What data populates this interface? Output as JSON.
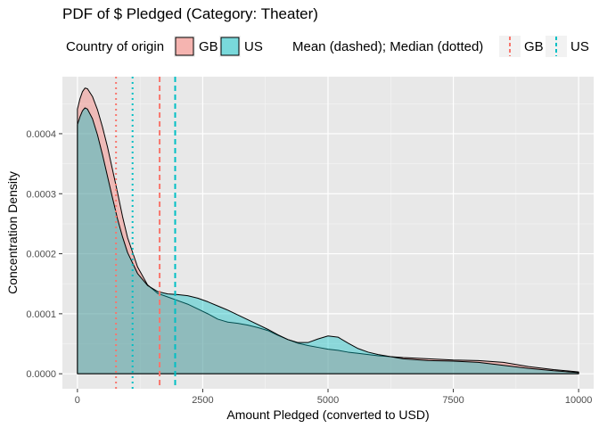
{
  "chart_data": {
    "type": "area",
    "title": "PDF of $ Pledged (Category: Theater)",
    "xlabel": "Amount Pledged (converted to USD)",
    "ylabel": "Concentration Density",
    "xlim": [
      -300,
      10300
    ],
    "ylim": [
      -2.5e-05,
      0.000495
    ],
    "x_ticks": [
      0,
      2500,
      5000,
      7500,
      10000
    ],
    "x_tick_labels": [
      "0",
      "2500",
      "5000",
      "7500",
      "10000"
    ],
    "y_ticks": [
      0,
      0.0001,
      0.0002,
      0.0003,
      0.0004
    ],
    "y_tick_labels": [
      "0.0000",
      "0.0001",
      "0.0002",
      "0.0003",
      "0.0004"
    ],
    "grid": true,
    "legend": {
      "placement": "top",
      "fill_title": "Country of origin",
      "line_title": "Mean (dashed); Median (dotted)",
      "labels": [
        "GB",
        "US"
      ]
    },
    "series": [
      {
        "name": "GB",
        "color": "#F8766D",
        "x": [
          0,
          50,
          100,
          150,
          200,
          300,
          400,
          500,
          600,
          700,
          800,
          900,
          1000,
          1200,
          1400,
          1600,
          1800,
          2000,
          2200,
          2400,
          2600,
          2800,
          3000,
          3200,
          3400,
          3600,
          3800,
          4000,
          4200,
          4400,
          4600,
          4800,
          5000,
          5200,
          5400,
          5600,
          5800,
          6000,
          6500,
          7000,
          7500,
          8000,
          8500,
          9000,
          9500,
          10000
        ],
        "y": [
          0.000441,
          0.000458,
          0.00047,
          0.000476,
          0.000475,
          0.000462,
          0.00044,
          0.000411,
          0.000378,
          0.00034,
          0.000302,
          0.000262,
          0.000227,
          0.000178,
          0.000148,
          0.000134,
          0.000128,
          0.000122,
          0.000116,
          0.000108,
          0.0001,
          9.1e-05,
          8.6e-05,
          8.4e-05,
          8.1e-05,
          7.7e-05,
          7.2e-05,
          6.4e-05,
          5.7e-05,
          5.1e-05,
          4.7e-05,
          4.4e-05,
          4.1e-05,
          3.9e-05,
          3.6e-05,
          3.4e-05,
          3.2e-05,
          3e-05,
          2.7e-05,
          2.5e-05,
          2.3e-05,
          2.2e-05,
          1.9e-05,
          1.2e-05,
          7e-06,
          3e-06
        ]
      },
      {
        "name": "US",
        "color": "#00BFC4",
        "x": [
          0,
          50,
          100,
          150,
          200,
          300,
          400,
          500,
          600,
          700,
          800,
          900,
          1000,
          1200,
          1400,
          1600,
          1800,
          2000,
          2200,
          2400,
          2600,
          2800,
          3000,
          3200,
          3400,
          3600,
          3800,
          4000,
          4200,
          4400,
          4600,
          4800,
          5000,
          5200,
          5400,
          5600,
          5800,
          6000,
          6500,
          7000,
          7500,
          8000,
          8500,
          9000,
          9500,
          10000
        ],
        "y": [
          0.000415,
          0.000428,
          0.000438,
          0.000443,
          0.000441,
          0.000425,
          0.000398,
          0.000365,
          0.000329,
          0.000293,
          0.000258,
          0.000228,
          0.000202,
          0.000167,
          0.000147,
          0.000137,
          0.000133,
          0.000132,
          0.00013,
          0.000126,
          0.00012,
          0.000113,
          0.000106,
          9.8e-05,
          9e-05,
          8.2e-05,
          7.4e-05,
          6.5e-05,
          5.7e-05,
          5.2e-05,
          5.2e-05,
          5.8e-05,
          6.3e-05,
          6.1e-05,
          5.1e-05,
          4.2e-05,
          3.6e-05,
          3.2e-05,
          2.5e-05,
          2.2e-05,
          2.1e-05,
          1.9e-05,
          1.4e-05,
          9e-06,
          5e-06,
          2e-06
        ]
      }
    ],
    "reference_lines": [
      {
        "series": "GB",
        "stat": "mean",
        "x": 1640,
        "style": "dashed",
        "color": "#F8766D"
      },
      {
        "series": "GB",
        "stat": "median",
        "x": 770,
        "style": "dotted",
        "color": "#F8766D"
      },
      {
        "series": "US",
        "stat": "mean",
        "x": 1950,
        "style": "dashed",
        "color": "#00BFC4"
      },
      {
        "series": "US",
        "stat": "median",
        "x": 1100,
        "style": "dotted",
        "color": "#00BFC4"
      }
    ]
  }
}
